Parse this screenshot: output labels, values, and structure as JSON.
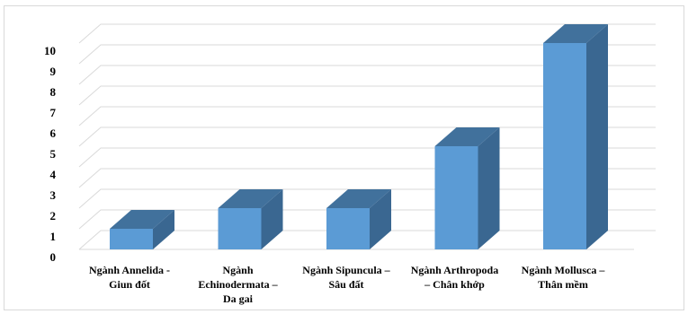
{
  "chart_data": {
    "type": "bar",
    "style": "3d-column",
    "categories": [
      [
        "Ngành Annelida -",
        "Giun đốt"
      ],
      [
        "Ngành",
        "Echinodermata –",
        "Da gai"
      ],
      [
        "Ngành Sipuncula –",
        "Sâu đất"
      ],
      [
        "Ngành Arthropoda",
        "– Chân khớp"
      ],
      [
        "Ngành Mollusca –",
        "Thân mềm"
      ]
    ],
    "values": [
      1,
      2,
      2,
      5,
      10
    ],
    "ylim": [
      0,
      10
    ],
    "yticks": [
      0,
      1,
      2,
      3,
      4,
      5,
      6,
      7,
      8,
      9,
      10
    ],
    "grid": true,
    "legend": "none",
    "title": "",
    "xlabel": "",
    "ylabel": "",
    "colors": {
      "front": "#5b9bd5",
      "top": "#41719c",
      "side": "#3a6791",
      "grid": "#d9d9d9"
    }
  }
}
